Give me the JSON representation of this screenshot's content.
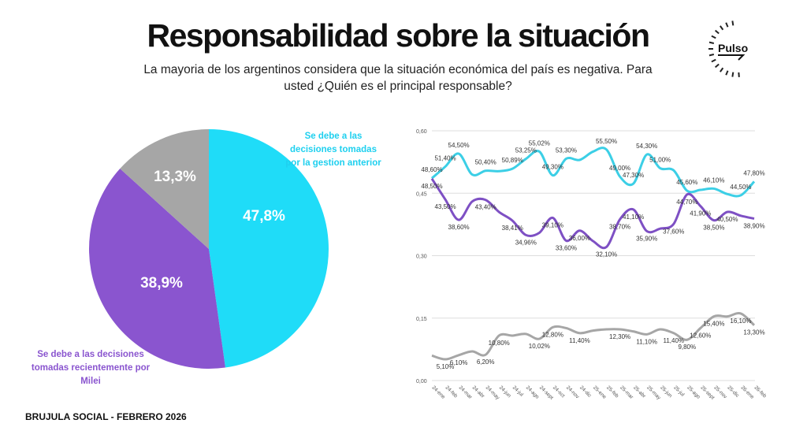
{
  "header": {
    "title": "Responsabilidad sobre la situación",
    "subtitle": "La mayoria de los argentinos considera que la situación económica del país es negativa. Para usted ¿Quién es el principal responsable?"
  },
  "logo": {
    "brand": "Pulso",
    "ring_text": "BRUJULA SOCIAL"
  },
  "footer": "BRUJULA SOCIAL - FEBRERO 2026",
  "colors": {
    "cyan": "#1fdcf8",
    "purple": "#8a55cf",
    "gray": "#a6a6a6"
  },
  "chart_data": [
    {
      "type": "pie",
      "slices": [
        {
          "label": "Se debe a las decisiones tomadas por la gestion anterior",
          "value": 47.8,
          "display": "47,8%",
          "color": "#1fdcf8"
        },
        {
          "label": "Se debe a las decisiones tomadas recientemente por Milei",
          "value": 38.9,
          "display": "38,9%",
          "color": "#8a55cf"
        },
        {
          "label": "",
          "value": 13.3,
          "display": "13,3%",
          "color": "#a6a6a6"
        }
      ]
    },
    {
      "type": "line",
      "ylim": [
        0,
        0.6
      ],
      "yticks": [
        "0,00",
        "0,15",
        "0,30",
        "0,45",
        "0,60"
      ],
      "grid": true,
      "categories": [
        "24-ene",
        "24-feb",
        "24-mar",
        "24-abr",
        "24-may",
        "24-jun",
        "24-jul",
        "24-ago",
        "24-sept",
        "24-oct",
        "24-nov",
        "24-dic",
        "25-ene",
        "25-feb",
        "25-mar",
        "25-abr",
        "25-may",
        "25-jun",
        "25-jul",
        "25-ago",
        "25-sept",
        "25-nov",
        "25-dic",
        "26-ene",
        "26-feb"
      ],
      "series": [
        {
          "color": "#3ccfe6",
          "values": [
            48.6,
            51.4,
            54.5,
            49.5,
            50.4,
            50.3,
            50.89,
            53.25,
            55.02,
            49.3,
            53.3,
            53.0,
            55.0,
            55.5,
            49.0,
            47.3,
            54.3,
            51.0,
            50.5,
            45.6,
            45.8,
            46.1,
            44.8,
            44.5,
            47.8
          ],
          "labels": [
            "48,60%",
            "51,40%",
            "54,50%",
            null,
            "50,40%",
            null,
            "50,89%",
            "53,25%",
            "55,02%",
            "49,30%",
            "53,30%",
            null,
            null,
            "55,50%",
            "49,00%",
            "47,30%",
            "54,30%",
            "51,00%",
            null,
            "45,60%",
            null,
            "46,10%",
            null,
            "44,50%",
            "47,80%"
          ]
        },
        {
          "color": "#7e50c4",
          "values": [
            48.5,
            43.5,
            38.6,
            43.0,
            43.4,
            40.5,
            38.41,
            34.96,
            35.5,
            39.1,
            33.6,
            36.0,
            33.5,
            32.1,
            38.7,
            41.1,
            35.9,
            36.5,
            37.6,
            44.7,
            41.9,
            38.5,
            40.5,
            39.6,
            38.9
          ],
          "labels": [
            "48,50%",
            "43,50%",
            "38,60%",
            null,
            "43,40%",
            null,
            "38,41%",
            "34,96%",
            null,
            "39,10%",
            "33,60%",
            "36,00%",
            null,
            "32,10%",
            "38,70%",
            "41,10%",
            "35,90%",
            null,
            "37,60%",
            "44,70%",
            "41,90%",
            "38,50%",
            "40,50%",
            null,
            "38,90%"
          ]
        },
        {
          "color": "#a6a6a6",
          "values": [
            6.0,
            5.1,
            6.1,
            7.0,
            6.2,
            10.8,
            10.8,
            11.2,
            10.02,
            12.8,
            12.6,
            11.4,
            12.0,
            12.3,
            12.3,
            11.8,
            11.1,
            12.3,
            11.4,
            9.8,
            12.6,
            15.4,
            15.4,
            16.1,
            13.3
          ],
          "labels": [
            null,
            "5,10%",
            "6,10%",
            null,
            "6,20%",
            "10,80%",
            null,
            null,
            "10,02%",
            "12,80%",
            null,
            "11,40%",
            null,
            null,
            "12,30%",
            null,
            "11,10%",
            null,
            "11,40%",
            "9,80%",
            "12,60%",
            "15,40%",
            null,
            "16,10%",
            "13,30%"
          ]
        }
      ]
    }
  ]
}
